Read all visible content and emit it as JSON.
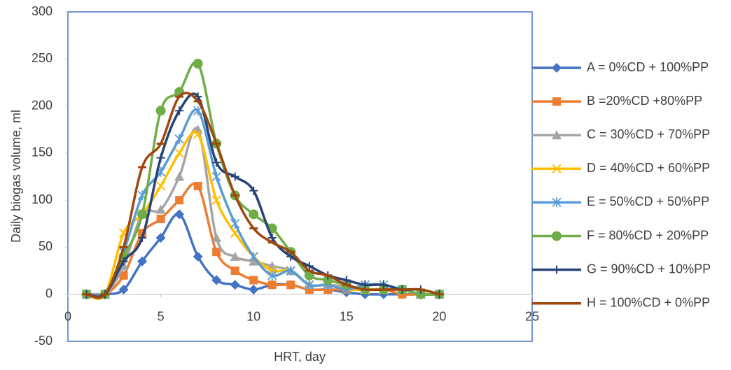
{
  "chart_data": {
    "type": "line",
    "x_label": "HRT, day",
    "y_label": "Daily biogas volume, ml",
    "x": [
      1,
      2,
      3,
      4,
      5,
      6,
      7,
      8,
      9,
      10,
      11,
      12,
      13,
      14,
      15,
      16,
      17,
      18,
      19,
      20
    ],
    "xlim": [
      0,
      25
    ],
    "xticks": [
      0,
      5,
      10,
      15,
      20,
      25
    ],
    "ylim": [
      -50,
      300
    ],
    "yticks": [
      -50,
      0,
      50,
      100,
      150,
      200,
      250,
      300
    ],
    "smooth": true,
    "legend": "right",
    "series": [
      {
        "name": "A = 0%CD + 100%PP",
        "color": "#4472c4",
        "marker": "diamond",
        "values": [
          0,
          0,
          5,
          35,
          60,
          85,
          40,
          15,
          10,
          5,
          10,
          10,
          5,
          5,
          2,
          0,
          0,
          0,
          0,
          0
        ]
      },
      {
        "name": "B =20%CD +80%PP",
        "color": "#ed7d31",
        "marker": "square",
        "values": [
          0,
          0,
          20,
          65,
          80,
          100,
          115,
          45,
          25,
          15,
          10,
          10,
          5,
          5,
          5,
          5,
          5,
          0,
          0,
          0
        ]
      },
      {
        "name": "C = 30%CD + 70%PP",
        "color": "#a5a5a5",
        "marker": "triangle",
        "values": [
          0,
          0,
          30,
          85,
          90,
          125,
          175,
          60,
          40,
          35,
          30,
          25,
          10,
          10,
          8,
          5,
          5,
          5,
          0,
          0
        ]
      },
      {
        "name": "D = 40%CD + 60%PP",
        "color": "#ffc000",
        "marker": "x",
        "values": [
          0,
          0,
          65,
          85,
          115,
          150,
          170,
          100,
          65,
          40,
          25,
          25,
          10,
          10,
          5,
          5,
          5,
          5,
          0,
          0
        ]
      },
      {
        "name": "E = 50%CD + 50%PP",
        "color": "#5b9bd5",
        "marker": "star",
        "values": [
          0,
          0,
          45,
          105,
          130,
          165,
          195,
          125,
          75,
          40,
          20,
          25,
          10,
          10,
          5,
          10,
          10,
          5,
          0,
          0
        ]
      },
      {
        "name": "F = 80%CD + 20%PP",
        "color": "#70ad47",
        "marker": "circle",
        "values": [
          0,
          0,
          40,
          85,
          195,
          215,
          245,
          160,
          105,
          85,
          70,
          45,
          20,
          15,
          10,
          5,
          5,
          5,
          0,
          0
        ]
      },
      {
        "name": "G = 90%CD + 10%PP",
        "color": "#264478",
        "marker": "plus",
        "values": [
          0,
          0,
          35,
          60,
          145,
          195,
          210,
          140,
          125,
          110,
          60,
          40,
          30,
          20,
          15,
          10,
          10,
          5,
          5,
          0
        ]
      },
      {
        "name": "H = 100%CD + 0%PP",
        "color": "#9e480e",
        "marker": "dash",
        "values": [
          0,
          0,
          50,
          135,
          160,
          210,
          205,
          160,
          105,
          70,
          55,
          45,
          25,
          20,
          10,
          5,
          5,
          5,
          5,
          0
        ]
      }
    ]
  }
}
